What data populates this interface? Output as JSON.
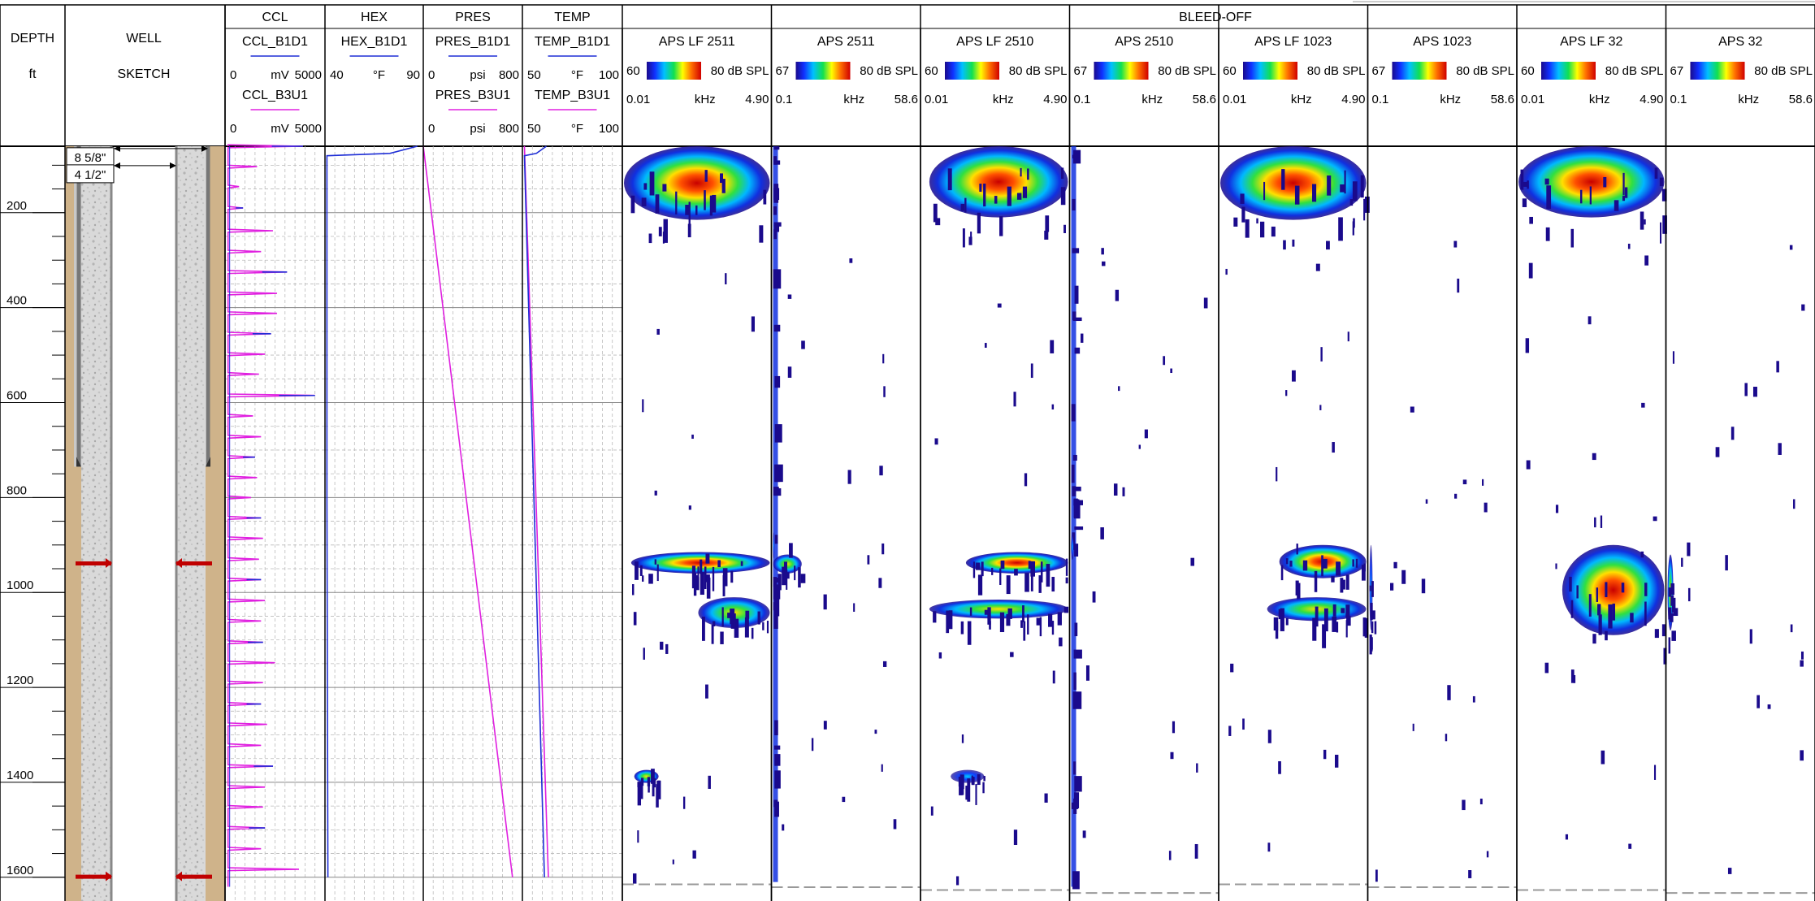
{
  "header": {
    "depth_title": "DEPTH",
    "depth_unit": "ft",
    "well_title_1": "WELL",
    "well_title_2": "SKETCH",
    "group_title": "BLEED-OFF"
  },
  "curve_tracks": [
    {
      "title": "CCL",
      "curves": [
        {
          "name": "CCL_B1D1",
          "min": "0",
          "unit": "mV",
          "max": "5000",
          "color": "#1f2fd6"
        },
        {
          "name": "CCL_B3U1",
          "min": "0",
          "unit": "mV",
          "max": "5000",
          "color": "#e020e0"
        }
      ]
    },
    {
      "title": "HEX",
      "curves": [
        {
          "name": "HEX_B1D1",
          "min": "40",
          "unit": "°F",
          "max": "90",
          "color": "#1f2fd6"
        }
      ]
    },
    {
      "title": "PRES",
      "curves": [
        {
          "name": "PRES_B1D1",
          "min": "0",
          "unit": "psi",
          "max": "800",
          "color": "#1f2fd6"
        },
        {
          "name": "PRES_B3U1",
          "min": "0",
          "unit": "psi",
          "max": "800",
          "color": "#e020e0"
        }
      ]
    },
    {
      "title": "TEMP",
      "curves": [
        {
          "name": "TEMP_B1D1",
          "min": "50",
          "unit": "°F",
          "max": "100",
          "color": "#1f2fd6"
        },
        {
          "name": "TEMP_B3U1",
          "min": "50",
          "unit": "°F",
          "max": "100",
          "color": "#e020e0"
        }
      ]
    }
  ],
  "aps_tracks": [
    {
      "name": "APS LF 2511",
      "spl_min": "60",
      "spl_max": "80 dB SPL",
      "f_min": "0.01",
      "f_unit": "kHz",
      "f_max": "4.90"
    },
    {
      "name": "APS 2511",
      "spl_min": "67",
      "spl_max": "80 dB SPL",
      "f_min": "0.1",
      "f_unit": "kHz",
      "f_max": "58.6"
    },
    {
      "name": "APS LF 2510",
      "spl_min": "60",
      "spl_max": "80 dB SPL",
      "f_min": "0.01",
      "f_unit": "kHz",
      "f_max": "4.90"
    },
    {
      "name": "APS 2510",
      "spl_min": "67",
      "spl_max": "80 dB SPL",
      "f_min": "0.1",
      "f_unit": "kHz",
      "f_max": "58.6"
    },
    {
      "name": "APS LF 1023",
      "spl_min": "60",
      "spl_max": "80 dB SPL",
      "f_min": "0.01",
      "f_unit": "kHz",
      "f_max": "4.90"
    },
    {
      "name": "APS 1023",
      "spl_min": "67",
      "spl_max": "80 dB SPL",
      "f_min": "0.1",
      "f_unit": "kHz",
      "f_max": "58.6"
    },
    {
      "name": "APS LF 32",
      "spl_min": "60",
      "spl_max": "80 dB SPL",
      "f_min": "0.01",
      "f_unit": "kHz",
      "f_max": "4.90"
    },
    {
      "name": "APS 32",
      "spl_min": "67",
      "spl_max": "80 dB SPL",
      "f_min": "0.1",
      "f_unit": "kHz",
      "f_max": "58.6"
    }
  ],
  "well": {
    "casing_labels": [
      "8 5/8\"",
      "4 1/2\""
    ],
    "outer_casing_shoe_depth": 735,
    "packer_depths": [
      938,
      1598
    ]
  },
  "chart_data": {
    "type": "heatmap",
    "depth_range": [
      60,
      1650
    ],
    "depth_tick_labels": [
      200,
      400,
      600,
      800,
      1000,
      1200,
      1400,
      1600
    ],
    "grid": true,
    "curves": {
      "hex": [
        [
          60,
          87
        ],
        [
          75,
          73
        ],
        [
          80,
          41
        ],
        [
          300,
          41
        ],
        [
          800,
          41
        ],
        [
          1600,
          41.5
        ]
      ],
      "temp_b1d1": [
        [
          60,
          62
        ],
        [
          75,
          57
        ],
        [
          80,
          51
        ],
        [
          1600,
          61
        ]
      ],
      "temp_b3u1": [
        [
          60,
          51
        ],
        [
          1600,
          63
        ]
      ],
      "pres": [
        [
          60,
          0
        ],
        [
          1600,
          720
        ]
      ],
      "ccl_collar_depths": [
        60,
        103,
        145,
        190,
        238,
        282,
        325,
        370,
        412,
        455,
        498,
        540,
        585,
        628,
        672,
        715,
        758,
        800,
        843,
        886,
        930,
        973,
        1017,
        1060,
        1105,
        1148,
        1190,
        1235,
        1278,
        1322,
        1366,
        1410,
        1452,
        1496,
        1540,
        1583
      ],
      "ccl_collar_amplitudes": [
        3900,
        1600,
        700,
        900,
        2400,
        1800,
        3100,
        2600,
        2600,
        2300,
        2000,
        1700,
        4500,
        1400,
        1800,
        1500,
        1600,
        1300,
        1800,
        1900,
        1700,
        1800,
        2000,
        1800,
        1900,
        2500,
        1900,
        1800,
        2100,
        1800,
        2400,
        2000,
        1900,
        2000,
        1800,
        3700
      ]
    },
    "spectrogram_events": [
      {
        "track": 0,
        "depth": [
          60,
          215
        ],
        "freq": [
          0.01,
          4.9
        ],
        "peak_spl": 80
      },
      {
        "track": 0,
        "depth": [
          915,
          960
        ],
        "freq": [
          0.3,
          4.9
        ],
        "peak_spl": 80
      },
      {
        "track": 0,
        "depth": [
          1010,
          1075
        ],
        "freq": [
          2.5,
          4.9
        ],
        "peak_spl": 76
      },
      {
        "track": 0,
        "depth": [
          1375,
          1400
        ],
        "freq": [
          0.4,
          1.2
        ],
        "peak_spl": 76
      },
      {
        "track": 1,
        "depth": [
          60,
          1610
        ],
        "freq": [
          0.1,
          2.0
        ],
        "peak_spl": 72
      },
      {
        "track": 1,
        "depth": [
          920,
          960
        ],
        "freq": [
          0.1,
          12
        ],
        "peak_spl": 75
      },
      {
        "track": 2,
        "depth": [
          60,
          210
        ],
        "freq": [
          0.3,
          4.9
        ],
        "peak_spl": 80
      },
      {
        "track": 2,
        "depth": [
          915,
          960
        ],
        "freq": [
          1.5,
          4.9
        ],
        "peak_spl": 80
      },
      {
        "track": 2,
        "depth": [
          1015,
          1055
        ],
        "freq": [
          0.3,
          4.9
        ],
        "peak_spl": 76
      },
      {
        "track": 2,
        "depth": [
          1375,
          1400
        ],
        "freq": [
          1.0,
          2.1
        ],
        "peak_spl": 74
      },
      {
        "track": 3,
        "depth": [
          60,
          1620
        ],
        "freq": [
          0.1,
          3.0
        ],
        "peak_spl": 72
      },
      {
        "track": 4,
        "depth": [
          60,
          215
        ],
        "freq": [
          0.01,
          4.9
        ],
        "peak_spl": 80
      },
      {
        "track": 4,
        "depth": [
          900,
          970
        ],
        "freq": [
          2.0,
          4.9
        ],
        "peak_spl": 80
      },
      {
        "track": 4,
        "depth": [
          1010,
          1060
        ],
        "freq": [
          1.6,
          4.9
        ],
        "peak_spl": 78
      },
      {
        "track": 5,
        "depth": [
          900,
          1080
        ],
        "freq": [
          0.1,
          2.0
        ],
        "peak_spl": 72
      },
      {
        "track": 6,
        "depth": [
          60,
          210
        ],
        "freq": [
          0.01,
          4.9
        ],
        "peak_spl": 80
      },
      {
        "track": 6,
        "depth": [
          900,
          1090
        ],
        "freq": [
          1.5,
          4.9
        ],
        "peak_spl": 80
      },
      {
        "track": 7,
        "depth": [
          920,
          1080
        ],
        "freq": [
          0.1,
          3.0
        ],
        "peak_spl": 76
      }
    ]
  }
}
